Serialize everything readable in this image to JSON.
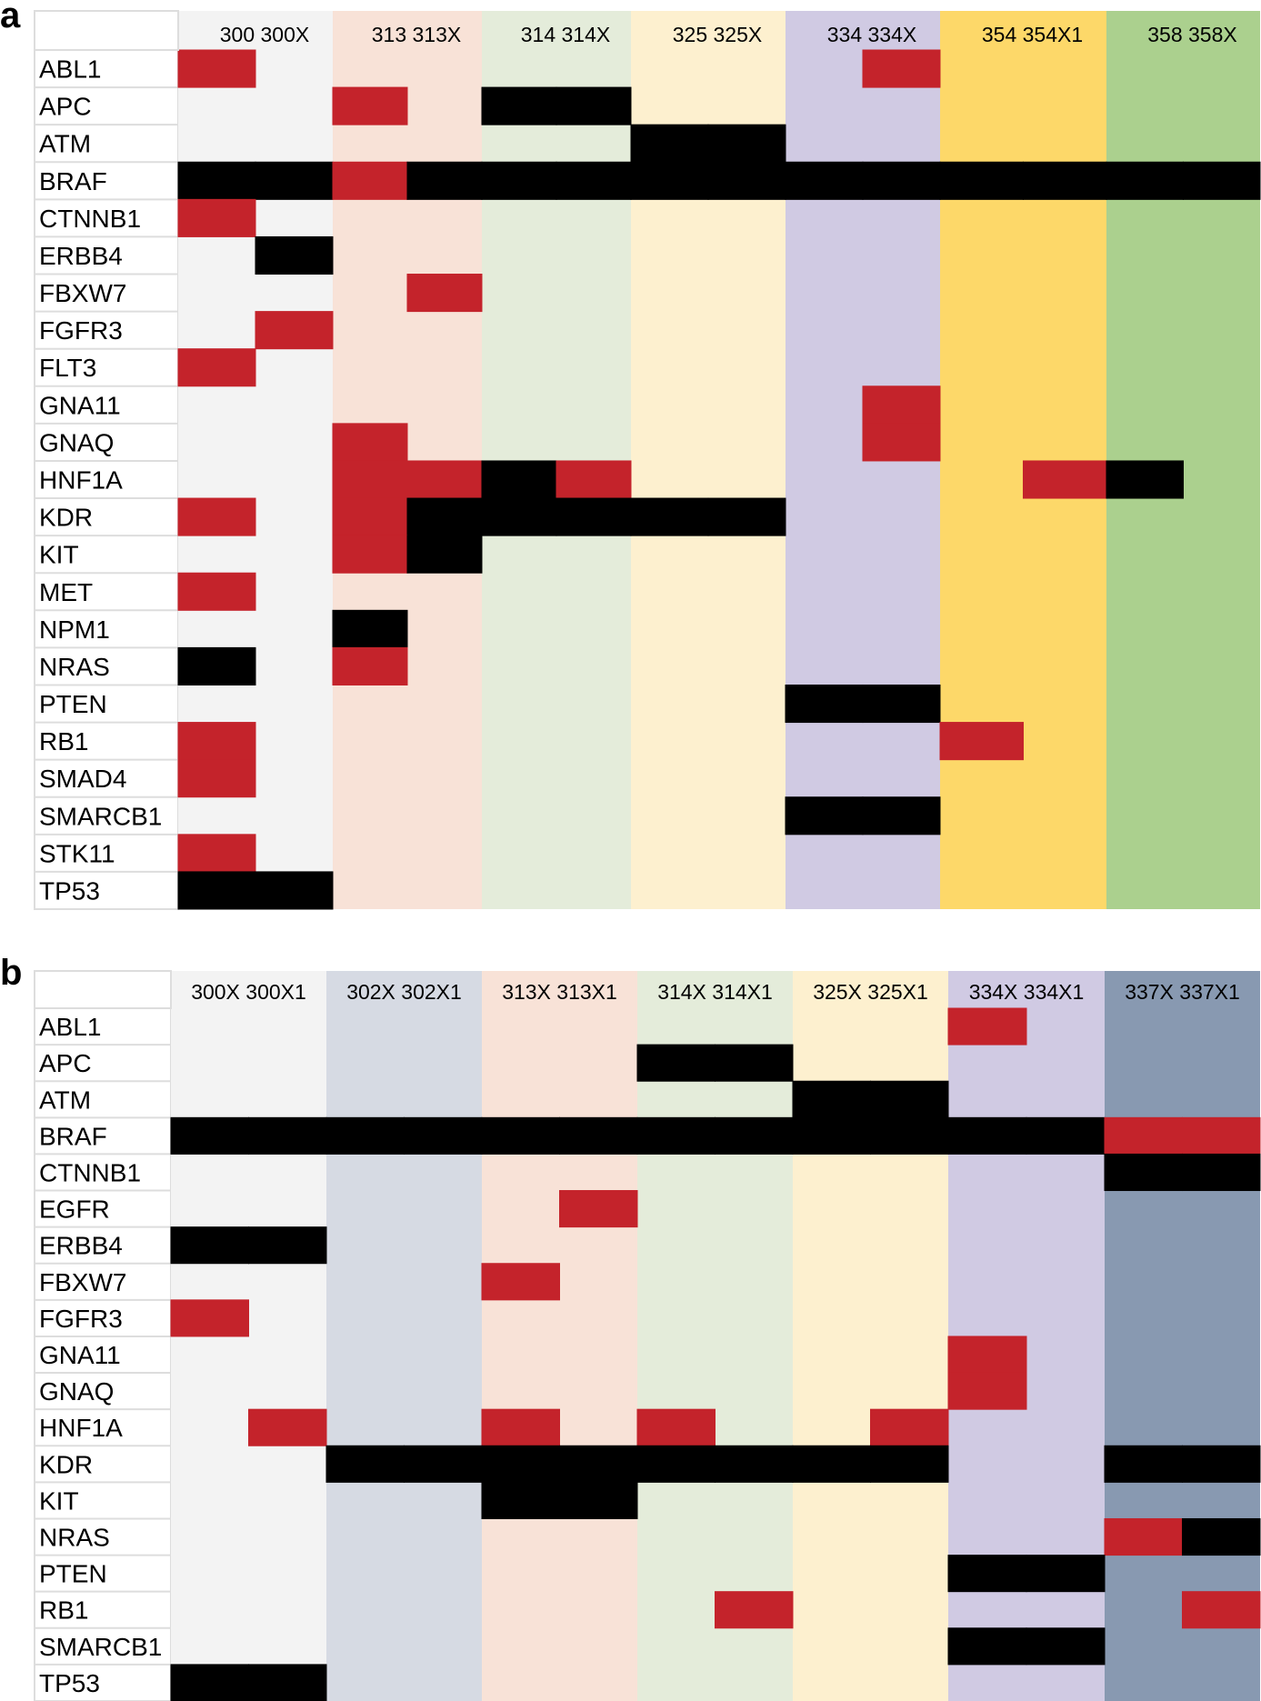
{
  "legend": {
    "red": "#c4232b",
    "black": "#000000"
  },
  "chart_data": [
    {
      "type": "heatmap",
      "panel_label": "a",
      "columns": [
        {
          "label": "300 300X",
          "color": "#f3f3f3",
          "subcolumns": [
            "300",
            "300X"
          ]
        },
        {
          "label": "313 313X",
          "color": "#f8e2d7",
          "subcolumns": [
            "313",
            "313X"
          ]
        },
        {
          "label": "314 314X",
          "color": "#e4ecda",
          "subcolumns": [
            "314",
            "314X"
          ]
        },
        {
          "label": "325 325X",
          "color": "#fdf0cf",
          "subcolumns": [
            "325",
            "325X"
          ]
        },
        {
          "label": "334 334X",
          "color": "#d0cae3",
          "subcolumns": [
            "334",
            "334X"
          ]
        },
        {
          "label": "354 354X1",
          "color": "#fdd869",
          "subcolumns": [
            "354",
            "354X1"
          ]
        },
        {
          "label": "358 358X",
          "color": "#abd08e",
          "subcolumns": [
            "358",
            "358X"
          ]
        }
      ],
      "genes": [
        "ABL1",
        "APC",
        "ATM",
        "BRAF",
        "CTNNB1",
        "ERBB4",
        "FBXW7",
        "FGFR3",
        "FLT3",
        "GNA11",
        "GNAQ",
        "HNF1A",
        "KDR",
        "KIT",
        "MET",
        "NPM1",
        "NRAS",
        "PTEN",
        "RB1",
        "SMAD4",
        "SMARCB1",
        "STK11",
        "TP53"
      ],
      "cells": [
        [
          1,
          0,
          0,
          0,
          0,
          0,
          0,
          0,
          0,
          1,
          0,
          0,
          0,
          0
        ],
        [
          0,
          0,
          1,
          0,
          2,
          2,
          0,
          0,
          0,
          0,
          0,
          0,
          0,
          0
        ],
        [
          0,
          0,
          0,
          0,
          0,
          0,
          2,
          2,
          0,
          0,
          0,
          0,
          0,
          0
        ],
        [
          2,
          2,
          1,
          2,
          2,
          2,
          2,
          2,
          2,
          2,
          2,
          2,
          2,
          2
        ],
        [
          1,
          0,
          0,
          0,
          0,
          0,
          0,
          0,
          0,
          0,
          0,
          0,
          0,
          0
        ],
        [
          0,
          2,
          0,
          0,
          0,
          0,
          0,
          0,
          0,
          0,
          0,
          0,
          0,
          0
        ],
        [
          0,
          0,
          0,
          1,
          0,
          0,
          0,
          0,
          0,
          0,
          0,
          0,
          0,
          0
        ],
        [
          0,
          1,
          0,
          0,
          0,
          0,
          0,
          0,
          0,
          0,
          0,
          0,
          0,
          0
        ],
        [
          1,
          0,
          0,
          0,
          0,
          0,
          0,
          0,
          0,
          0,
          0,
          0,
          0,
          0
        ],
        [
          0,
          0,
          0,
          0,
          0,
          0,
          0,
          0,
          0,
          1,
          0,
          0,
          0,
          0
        ],
        [
          0,
          0,
          1,
          0,
          0,
          0,
          0,
          0,
          0,
          1,
          0,
          0,
          0,
          0
        ],
        [
          0,
          0,
          1,
          1,
          2,
          1,
          0,
          0,
          0,
          0,
          0,
          1,
          2,
          0
        ],
        [
          1,
          0,
          1,
          2,
          2,
          2,
          2,
          2,
          0,
          0,
          0,
          0,
          0,
          0
        ],
        [
          0,
          0,
          1,
          2,
          0,
          0,
          0,
          0,
          0,
          0,
          0,
          0,
          0,
          0
        ],
        [
          1,
          0,
          0,
          0,
          0,
          0,
          0,
          0,
          0,
          0,
          0,
          0,
          0,
          0
        ],
        [
          0,
          0,
          2,
          0,
          0,
          0,
          0,
          0,
          0,
          0,
          0,
          0,
          0,
          0
        ],
        [
          2,
          0,
          1,
          0,
          0,
          0,
          0,
          0,
          0,
          0,
          0,
          0,
          0,
          0
        ],
        [
          0,
          0,
          0,
          0,
          0,
          0,
          0,
          0,
          2,
          2,
          0,
          0,
          0,
          0
        ],
        [
          1,
          0,
          0,
          0,
          0,
          0,
          0,
          0,
          0,
          0,
          1,
          0,
          0,
          0
        ],
        [
          1,
          0,
          0,
          0,
          0,
          0,
          0,
          0,
          0,
          0,
          0,
          0,
          0,
          0
        ],
        [
          0,
          0,
          0,
          0,
          0,
          0,
          0,
          0,
          2,
          2,
          0,
          0,
          0,
          0
        ],
        [
          1,
          0,
          0,
          0,
          0,
          0,
          0,
          0,
          0,
          0,
          0,
          0,
          0,
          0
        ],
        [
          2,
          2,
          0,
          0,
          0,
          0,
          0,
          0,
          0,
          0,
          0,
          0,
          0,
          0
        ]
      ]
    },
    {
      "type": "heatmap",
      "panel_label": "b",
      "columns": [
        {
          "label": "300X 300X1",
          "color": "#f3f3f3",
          "subcolumns": [
            "300X",
            "300X1"
          ]
        },
        {
          "label": "302X 302X1",
          "color": "#d6dae3",
          "subcolumns": [
            "302X",
            "302X1"
          ]
        },
        {
          "label": "313X 313X1",
          "color": "#f8e2d7",
          "subcolumns": [
            "313X",
            "313X1"
          ]
        },
        {
          "label": "314X 314X1",
          "color": "#e4ecda",
          "subcolumns": [
            "314X",
            "314X1"
          ]
        },
        {
          "label": "325X 325X1",
          "color": "#fdf0cf",
          "subcolumns": [
            "325X",
            "325X1"
          ]
        },
        {
          "label": "334X 334X1",
          "color": "#d0cae3",
          "subcolumns": [
            "334X",
            "334X1"
          ]
        },
        {
          "label": "337X 337X1",
          "color": "#8899b1",
          "subcolumns": [
            "337X",
            "337X1"
          ]
        }
      ],
      "genes": [
        "ABL1",
        "APC",
        "ATM",
        "BRAF",
        "CTNNB1",
        "EGFR",
        "ERBB4",
        "FBXW7",
        "FGFR3",
        "GNA11",
        "GNAQ",
        "HNF1A",
        "KDR",
        "KIT",
        "NRAS",
        "PTEN",
        "RB1",
        "SMARCB1",
        "TP53"
      ],
      "cells": [
        [
          0,
          0,
          0,
          0,
          0,
          0,
          0,
          0,
          0,
          0,
          1,
          0,
          0,
          0
        ],
        [
          0,
          0,
          0,
          0,
          0,
          0,
          2,
          2,
          0,
          0,
          0,
          0,
          0,
          0
        ],
        [
          0,
          0,
          0,
          0,
          0,
          0,
          0,
          0,
          2,
          2,
          0,
          0,
          0,
          0
        ],
        [
          2,
          2,
          2,
          2,
          2,
          2,
          2,
          2,
          2,
          2,
          2,
          2,
          1,
          1
        ],
        [
          0,
          0,
          0,
          0,
          0,
          0,
          0,
          0,
          0,
          0,
          0,
          0,
          2,
          2
        ],
        [
          0,
          0,
          0,
          0,
          0,
          1,
          0,
          0,
          0,
          0,
          0,
          0,
          0,
          0
        ],
        [
          2,
          2,
          0,
          0,
          0,
          0,
          0,
          0,
          0,
          0,
          0,
          0,
          0,
          0
        ],
        [
          0,
          0,
          0,
          0,
          1,
          0,
          0,
          0,
          0,
          0,
          0,
          0,
          0,
          0
        ],
        [
          1,
          0,
          0,
          0,
          0,
          0,
          0,
          0,
          0,
          0,
          0,
          0,
          0,
          0
        ],
        [
          0,
          0,
          0,
          0,
          0,
          0,
          0,
          0,
          0,
          0,
          1,
          0,
          0,
          0
        ],
        [
          0,
          0,
          0,
          0,
          0,
          0,
          0,
          0,
          0,
          0,
          1,
          0,
          0,
          0
        ],
        [
          0,
          1,
          0,
          0,
          1,
          0,
          1,
          0,
          0,
          1,
          0,
          0,
          0,
          0
        ],
        [
          0,
          0,
          2,
          2,
          2,
          2,
          2,
          2,
          2,
          2,
          0,
          0,
          2,
          2
        ],
        [
          0,
          0,
          0,
          0,
          2,
          2,
          0,
          0,
          0,
          0,
          0,
          0,
          0,
          0
        ],
        [
          0,
          0,
          0,
          0,
          0,
          0,
          0,
          0,
          0,
          0,
          0,
          0,
          1,
          2
        ],
        [
          0,
          0,
          0,
          0,
          0,
          0,
          0,
          0,
          0,
          0,
          2,
          2,
          0,
          0
        ],
        [
          0,
          0,
          0,
          0,
          0,
          0,
          0,
          1,
          0,
          0,
          0,
          0,
          0,
          1
        ],
        [
          0,
          0,
          0,
          0,
          0,
          0,
          0,
          0,
          0,
          0,
          2,
          2,
          0,
          0
        ],
        [
          2,
          2,
          0,
          0,
          0,
          0,
          0,
          0,
          0,
          0,
          0,
          0,
          0,
          0
        ]
      ]
    }
  ]
}
